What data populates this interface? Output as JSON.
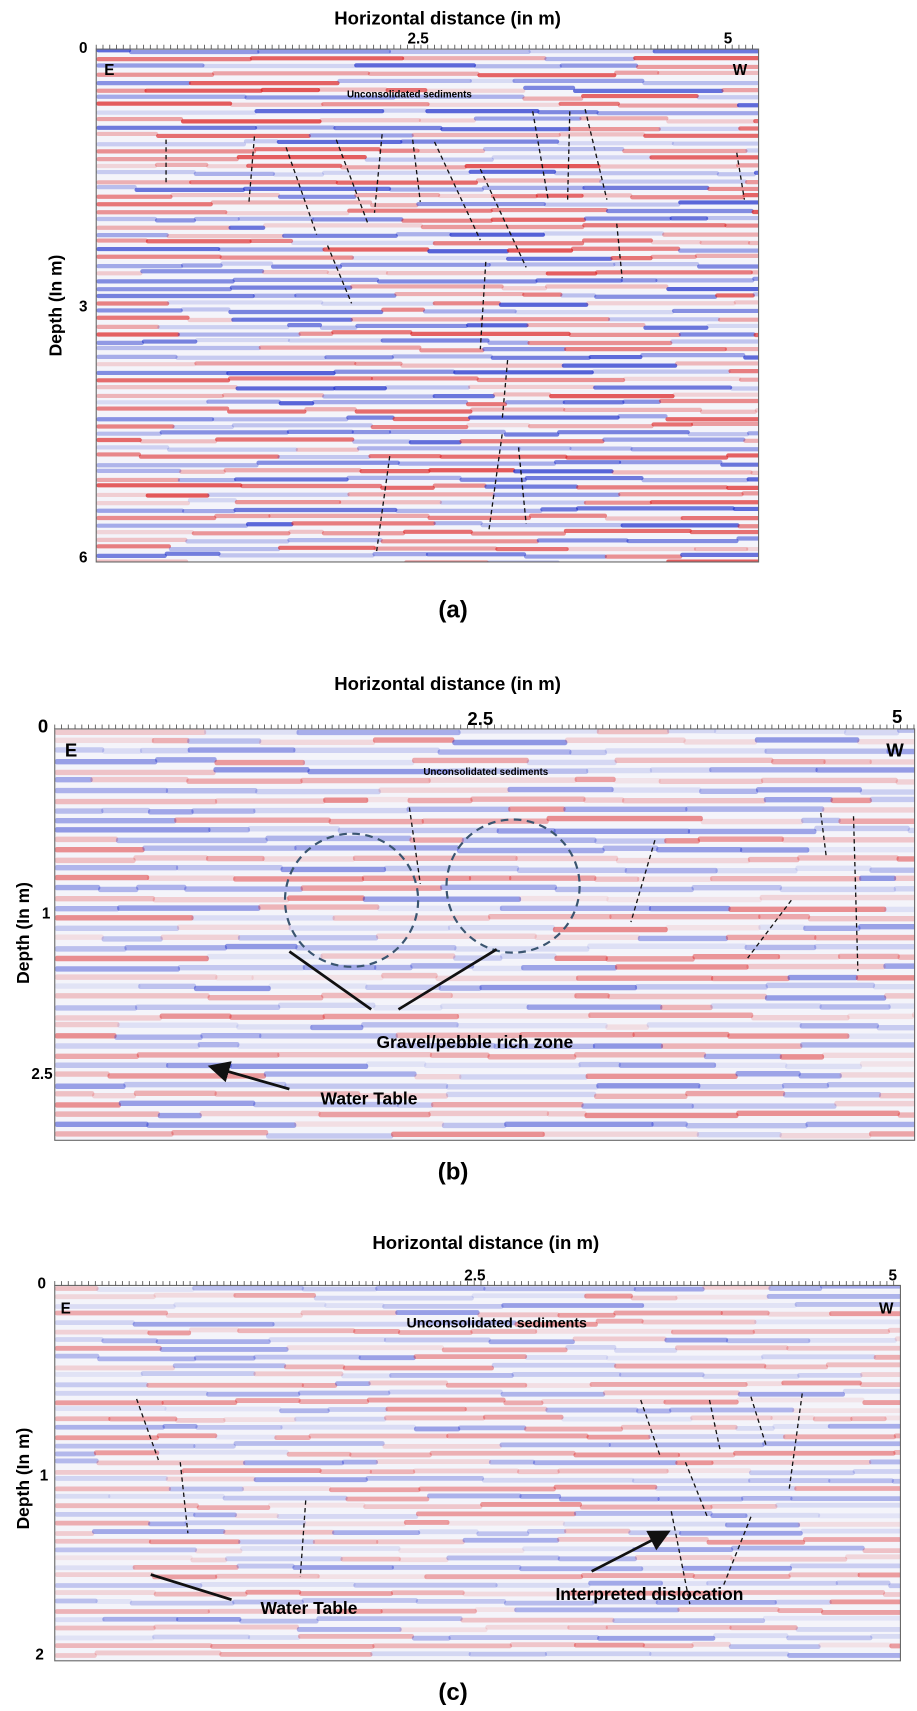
{
  "panels": [
    {
      "x_axis_title": "Horizontal distance (in m)",
      "x_ticks": [
        "2.5",
        "5"
      ],
      "y_ticks": [
        "0",
        "3",
        "6"
      ],
      "y_axis_title": "Depth (In m)",
      "direction_labels": [
        "E",
        "W"
      ],
      "annotations": [
        "Unconsolidated sediments"
      ],
      "caption": "(a)"
    },
    {
      "x_axis_title": "Horizontal distance (in m)",
      "x_ticks": [
        "2.5",
        "5"
      ],
      "y_ticks": [
        "0",
        "1",
        "2.5"
      ],
      "y_axis_title": "Depth (In m)",
      "direction_labels": [
        "E",
        "W"
      ],
      "annotations": [
        "Unconsolidated sediments",
        "Gravel/pebble rich zone",
        "Water Table"
      ],
      "caption": "(b)"
    },
    {
      "x_axis_title": "Horizontal distance (in m)",
      "x_ticks": [
        "2.5",
        "5"
      ],
      "y_ticks": [
        "0",
        "1",
        "2"
      ],
      "y_axis_title": "Depth (In m)",
      "direction_labels": [
        "E",
        "W"
      ],
      "annotations": [
        "Unconsolidated sediments",
        "Water Table",
        "Interpreted dislocation"
      ],
      "caption": "(c)"
    }
  ]
}
